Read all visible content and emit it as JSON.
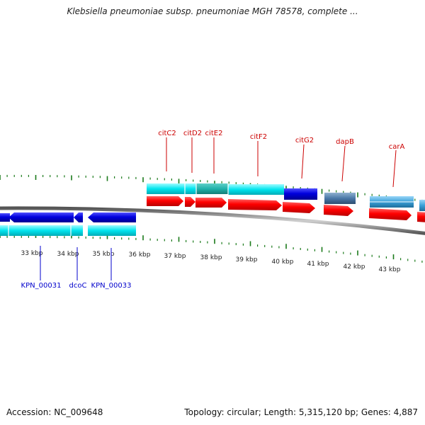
{
  "title": "Klebsiella pneumoniae subsp. pneumoniae MGH 78578, complete ...",
  "footer": {
    "accession": "Accession: NC_009648",
    "topology": "Topology: circular; Length: 5,315,120 bp; Genes: 4,887"
  },
  "colors": {
    "tick": "#1a7a1a",
    "upper_gene_label": "#cc0000",
    "lower_gene_label": "#0000cc",
    "backbone": "#808080",
    "cds_forward": "#ff0000",
    "cds_reverse": "#0000dd",
    "gene_cyan": "#00e5ee",
    "gene_teal": "#20b2aa",
    "gene_steel": "#4a78a8",
    "gene_lightblue": "#3aa0d8"
  },
  "kbp_labels": [
    "33 kbp",
    "34 kbp",
    "35 kbp",
    "36 kbp",
    "37 kbp",
    "38 kbp",
    "39 kbp",
    "40 kbp",
    "41 kbp",
    "42 kbp",
    "43 kbp"
  ],
  "upper_gene_labels": [
    "citC2",
    "citD2",
    "citE2",
    "citF2",
    "citG2",
    "dapB",
    "carA"
  ],
  "lower_gene_labels": [
    "KPN_00031",
    "dcoC",
    "KPN_00033"
  ]
}
